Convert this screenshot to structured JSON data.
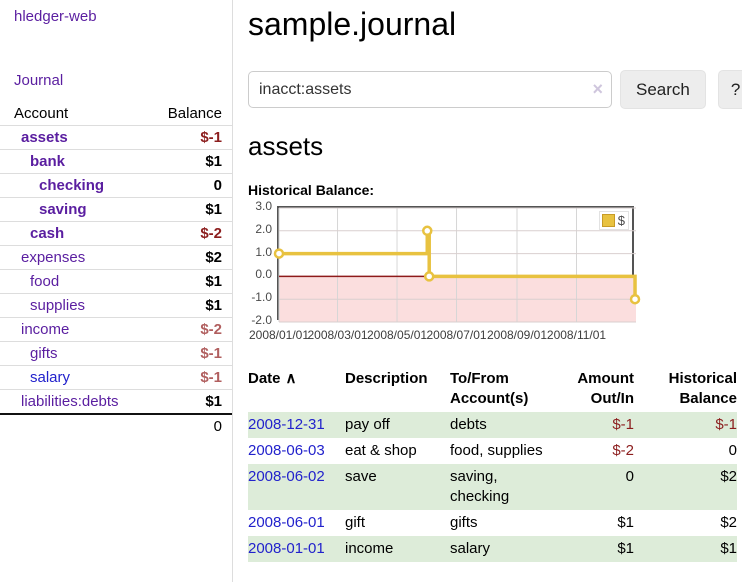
{
  "colors": {
    "link_purple": "#5a1ea0",
    "link_blue": "#2222cc",
    "negative_dark": "#8c1e1e",
    "negative_soft": "#b15f5f",
    "row_green": "#ddecd9",
    "chart_line": "#e8c240",
    "chart_negative_region": "#fbdede",
    "chart_zero_line": "#8e1a1a"
  },
  "sidebar": {
    "brand": "hledger-web",
    "nav_journal": "Journal",
    "accounts": {
      "header_account": "Account",
      "header_balance": "Balance",
      "rows": [
        {
          "name": "assets",
          "balance": "$-1",
          "depth": 1,
          "bold": true,
          "neg": "dark"
        },
        {
          "name": "bank",
          "balance": "$1",
          "depth": 2,
          "bold": true,
          "neg": "none"
        },
        {
          "name": "checking",
          "balance": "0",
          "depth": 3,
          "bold": true,
          "neg": "none"
        },
        {
          "name": "saving",
          "balance": "$1",
          "depth": 3,
          "bold": true,
          "neg": "none"
        },
        {
          "name": "cash",
          "balance": "$-2",
          "depth": 2,
          "bold": true,
          "neg": "dark"
        },
        {
          "name": "expenses",
          "balance": "$2",
          "depth": 1,
          "bold": false,
          "neg": "none"
        },
        {
          "name": "food",
          "balance": "$1",
          "depth": 2,
          "bold": false,
          "neg": "none"
        },
        {
          "name": "supplies",
          "balance": "$1",
          "depth": 2,
          "bold": false,
          "neg": "none"
        },
        {
          "name": "income",
          "balance": "$-2",
          "depth": 1,
          "bold": false,
          "neg": "soft"
        },
        {
          "name": "gifts",
          "balance": "$-1",
          "depth": 2,
          "bold": false,
          "neg": "soft"
        },
        {
          "name": "salary",
          "balance": "$-1",
          "depth": 2,
          "bold": false,
          "neg": "soft",
          "link_color": "blue"
        },
        {
          "name": "liabilities:debts",
          "balance": "$1",
          "depth": 1,
          "bold": false,
          "neg": "none"
        }
      ],
      "total": "0"
    }
  },
  "main": {
    "title": "sample.journal",
    "search": {
      "value": "inacct:assets",
      "clear": "×",
      "search_label": "Search",
      "help_label": "?"
    },
    "account_heading": "assets",
    "chart_label": "Historical Balance:",
    "legend_label": "$"
  },
  "chart_data": {
    "type": "line",
    "title": "Historical Balance",
    "legend": "$",
    "legend_position": "top-right",
    "step": "after",
    "ylim": [
      -2,
      3
    ],
    "y_ticks": [
      3.0,
      2.0,
      1.0,
      0.0,
      -1.0,
      -2.0
    ],
    "x_ticks": [
      "2008/01/01",
      "2008/03/01",
      "2008/05/01",
      "2008/07/01",
      "2008/09/01",
      "2008/11/01"
    ],
    "points": [
      {
        "x": "2008-01-01",
        "y": 1
      },
      {
        "x": "2008-06-01",
        "y": 2
      },
      {
        "x": "2008-06-03",
        "y": 0
      },
      {
        "x": "2008-12-31",
        "y": -1
      }
    ],
    "negative_region_shaded": true,
    "grid": true
  },
  "register": {
    "headers": {
      "date": "Date",
      "sort_icon": "∧",
      "description": "Description",
      "accounts": "To/From Account(s)",
      "amount": "Amount Out/In",
      "balance": "Historical Balance"
    },
    "rows": [
      {
        "date": "2008-12-31",
        "description": "pay off",
        "accounts": "debts",
        "amount": "$-1",
        "balance": "$-1",
        "amount_neg": true,
        "balance_neg": true
      },
      {
        "date": "2008-06-03",
        "description": "eat & shop",
        "accounts": "food, supplies",
        "amount": "$-2",
        "balance": "0",
        "amount_neg": true,
        "balance_neg": false
      },
      {
        "date": "2008-06-02",
        "description": "save",
        "accounts": "saving, checking",
        "amount": "0",
        "balance": "$2",
        "amount_neg": false,
        "balance_neg": false
      },
      {
        "date": "2008-06-01",
        "description": "gift",
        "accounts": "gifts",
        "amount": "$1",
        "balance": "$2",
        "amount_neg": false,
        "balance_neg": false
      },
      {
        "date": "2008-01-01",
        "description": "income",
        "accounts": "salary",
        "amount": "$1",
        "balance": "$1",
        "amount_neg": false,
        "balance_neg": false
      }
    ]
  }
}
